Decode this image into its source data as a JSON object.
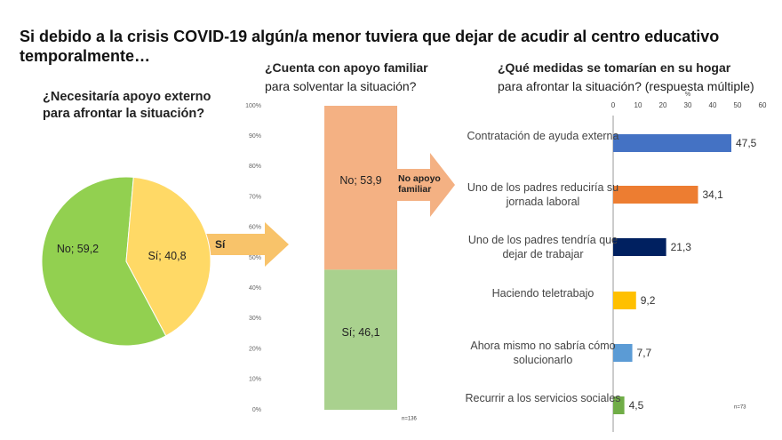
{
  "title": "Si debido a la crisis COVID-19 algún/a menor tuviera que dejar de acudir al centro educativo temporalmente…",
  "annotations": [
    "Sí",
    "No apoyo familiar"
  ],
  "chart_data": [
    {
      "type": "pie",
      "title": "¿Necesitaría apoyo externo para afrontar la situación?",
      "categories": [
        "No",
        "Sí"
      ],
      "values": [
        59.2,
        40.8
      ],
      "value_labels": [
        "No; 59,2",
        "Sí; 40,8"
      ],
      "colors": [
        "#92d050",
        "#ffd966"
      ]
    },
    {
      "type": "stacked-bar",
      "title": "¿Cuenta con apoyo familiar",
      "subtitle": "para solventar la situación?",
      "series": [
        {
          "name": "Sí",
          "color": "#a9d18e",
          "values": [
            46.1
          ],
          "value_labels": [
            "Sí; 46,1"
          ]
        },
        {
          "name": "No",
          "color": "#f4b183",
          "values": [
            53.9
          ],
          "value_labels": [
            "No; 53,9"
          ]
        }
      ],
      "ylim": [
        0,
        100
      ],
      "yticks": [
        {
          "value": 0,
          "label": "0%"
        },
        {
          "value": 10,
          "label": "10%"
        },
        {
          "value": 20,
          "label": "20%"
        },
        {
          "value": 30,
          "label": "30%"
        },
        {
          "value": 40,
          "label": "40%"
        },
        {
          "value": 50,
          "label": "50%"
        },
        {
          "value": 60,
          "label": "60%"
        },
        {
          "value": 70,
          "label": "70%"
        },
        {
          "value": 80,
          "label": "80%"
        },
        {
          "value": 90,
          "label": "90%"
        },
        {
          "value": 100,
          "label": "100%"
        }
      ],
      "note": "n=136"
    },
    {
      "type": "hbar",
      "title": "¿Qué medidas se tomarían en su hogar",
      "subtitle": "para afrontar la situación? (respuesta múltiple)",
      "categories": [
        "Contratación de ayuda externa",
        "Uno de los padres reduciría su jornada laboral",
        "Uno de los padres tendría que dejar de trabajar",
        "Haciendo teletrabajo",
        "Ahora mismo no sabría cómo solucionarlo",
        "Recurrir a los servicios sociales"
      ],
      "values": [
        47.5,
        34.1,
        21.3,
        9.2,
        7.7,
        4.5
      ],
      "value_labels": [
        "47,5",
        "34,1",
        "21,3",
        "9,2",
        "7,7",
        "4,5"
      ],
      "colors": [
        "#4472c4",
        "#ed7d31",
        "#002060",
        "#ffc000",
        "#5b9bd5",
        "#70ad47"
      ],
      "xlim": [
        0,
        60
      ],
      "xticks": [
        0,
        10,
        20,
        30,
        40,
        50,
        60
      ],
      "x_label": "%",
      "note": "n=73"
    }
  ]
}
